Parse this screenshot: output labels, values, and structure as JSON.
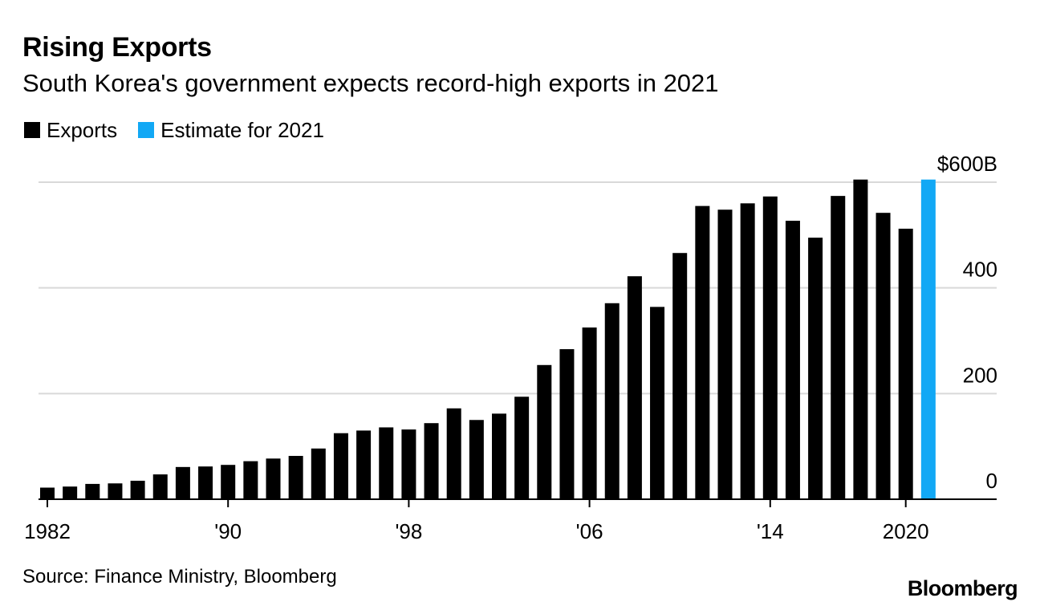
{
  "colors": {
    "exports": "#000000",
    "estimate": "#12a8f5",
    "grid": "#d9d9d9",
    "axis": "#000000"
  },
  "legend": {
    "exports_label": "Exports",
    "estimate_label": "Estimate for 2021"
  },
  "footer": {
    "source": "Source: Finance Ministry, Bloomberg",
    "logo": "Bloomberg"
  },
  "chart_data": {
    "type": "bar",
    "title": "Rising Exports",
    "subtitle": "South Korea's government expects record-high exports in 2021",
    "xlabel": "",
    "ylabel": "",
    "ylim": [
      0,
      600
    ],
    "grid": true,
    "y_ticks": [
      {
        "value": 0,
        "label": "0"
      },
      {
        "value": 200,
        "label": "200"
      },
      {
        "value": 400,
        "label": "400"
      },
      {
        "value": 600,
        "label": "$600B"
      }
    ],
    "x_ticks": [
      {
        "year": 1982,
        "label": "1982"
      },
      {
        "year": 1990,
        "label": "'90"
      },
      {
        "year": 1998,
        "label": "'98"
      },
      {
        "year": 2006,
        "label": "'06"
      },
      {
        "year": 2014,
        "label": "'14"
      },
      {
        "year": 2020,
        "label": "2020"
      }
    ],
    "series": [
      {
        "name": "Exports",
        "years": [
          1982,
          1983,
          1984,
          1985,
          1986,
          1987,
          1988,
          1989,
          1990,
          1991,
          1992,
          1993,
          1994,
          1995,
          1996,
          1997,
          1998,
          1999,
          2000,
          2001,
          2002,
          2003,
          2004,
          2005,
          2006,
          2007,
          2008,
          2009,
          2010,
          2011,
          2012,
          2013,
          2014,
          2015,
          2016,
          2017,
          2018,
          2019,
          2020
        ],
        "values": [
          22,
          24,
          29,
          30,
          35,
          47,
          61,
          62,
          65,
          72,
          77,
          82,
          96,
          125,
          130,
          136,
          132,
          144,
          172,
          150,
          162,
          194,
          254,
          284,
          325,
          371,
          422,
          364,
          466,
          555,
          548,
          560,
          573,
          527,
          495,
          574,
          605,
          542,
          512
        ]
      },
      {
        "name": "Estimate for 2021",
        "years": [
          2021
        ],
        "values": [
          605
        ]
      }
    ]
  }
}
